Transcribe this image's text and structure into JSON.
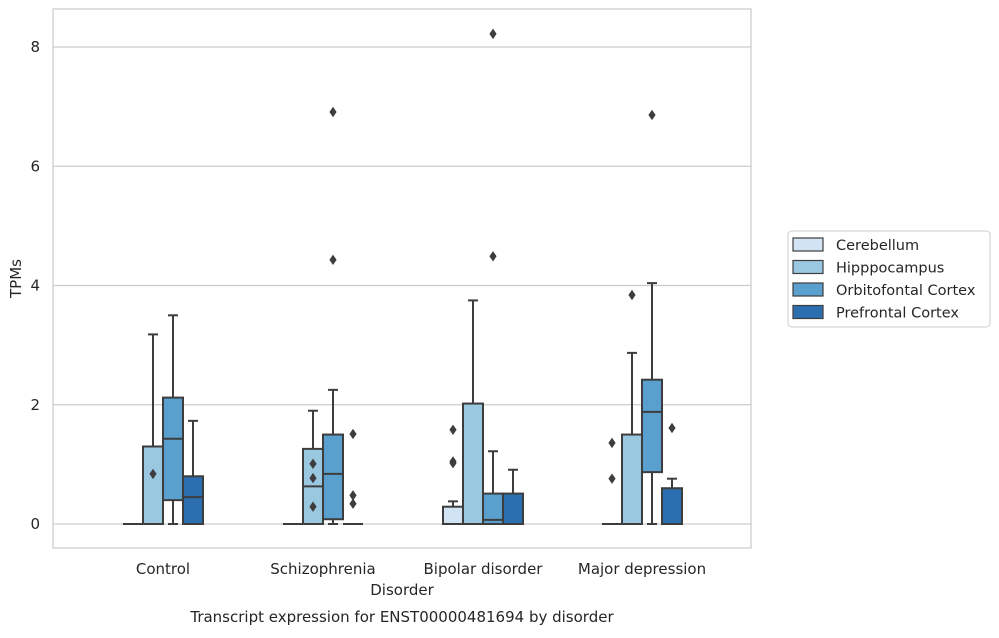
{
  "chart_data": {
    "type": "box",
    "caption": "Transcript expression for ENST00000481694 by disorder",
    "xlabel": "Disorder",
    "ylabel": "TPMs",
    "ylim": [
      -0.4,
      8.65
    ],
    "yticks": [
      0,
      2,
      4,
      6,
      8
    ],
    "categories": [
      "Control",
      "Schizophrenia",
      "Bipolar disorder",
      "Major depression"
    ],
    "grid": "horizontal",
    "legend_position": "right",
    "series": [
      {
        "name": "Cerebellum",
        "color": "#d2e3f3",
        "boxes": [
          {
            "q1": 0,
            "median": 0,
            "q3": 0,
            "whisker_low": 0,
            "whisker_high": 0,
            "outliers": []
          },
          {
            "q1": 0,
            "median": 0,
            "q3": 0,
            "whisker_low": 0,
            "whisker_high": 0,
            "outliers": []
          },
          {
            "q1": 0,
            "median": 0,
            "q3": 0.29,
            "whisker_low": 0,
            "whisker_high": 0.38,
            "outliers": [
              1.02,
              1.05,
              1.58
            ]
          },
          {
            "q1": 0,
            "median": 0,
            "q3": 0,
            "whisker_low": 0,
            "whisker_high": 0,
            "outliers": [
              0.76,
              1.36
            ]
          }
        ]
      },
      {
        "name": "Hipppocampus",
        "color": "#9ac8e0",
        "boxes": [
          {
            "q1": 0,
            "median": 0,
            "q3": 1.3,
            "whisker_low": 0,
            "whisker_high": 3.18,
            "outliers": [
              0.84
            ]
          },
          {
            "q1": 0,
            "median": 0.63,
            "q3": 1.26,
            "whisker_low": 0,
            "whisker_high": 1.9,
            "outliers": [
              0.29,
              0.77,
              1.01
            ]
          },
          {
            "q1": 0,
            "median": 0,
            "q3": 2.02,
            "whisker_low": 0,
            "whisker_high": 3.75,
            "outliers": []
          },
          {
            "q1": 0,
            "median": 0,
            "q3": 1.5,
            "whisker_low": 0,
            "whisker_high": 2.87,
            "outliers": [
              3.84
            ]
          }
        ]
      },
      {
        "name": "Orbitofontal Cortex",
        "color": "#5aa0ce",
        "boxes": [
          {
            "q1": 0.4,
            "median": 1.43,
            "q3": 2.12,
            "whisker_low": 0,
            "whisker_high": 3.5,
            "outliers": []
          },
          {
            "q1": 0.08,
            "median": 0.84,
            "q3": 1.5,
            "whisker_low": 0,
            "whisker_high": 2.25,
            "outliers": [
              4.43,
              6.91
            ]
          },
          {
            "q1": 0,
            "median": 0.07,
            "q3": 0.51,
            "whisker_low": 0,
            "whisker_high": 1.22,
            "outliers": [
              4.49,
              8.22
            ]
          },
          {
            "q1": 0.87,
            "median": 1.88,
            "q3": 2.42,
            "whisker_low": 0,
            "whisker_high": 4.04,
            "outliers": [
              6.86
            ]
          }
        ]
      },
      {
        "name": "Prefrontal Cortex",
        "color": "#2b6fb0",
        "boxes": [
          {
            "q1": 0,
            "median": 0.45,
            "q3": 0.8,
            "whisker_low": 0,
            "whisker_high": 1.73,
            "outliers": []
          },
          {
            "q1": 0,
            "median": 0,
            "q3": 0,
            "whisker_low": 0,
            "whisker_high": 0,
            "outliers": [
              0.34,
              0.48,
              1.51
            ]
          },
          {
            "q1": 0,
            "median": 0,
            "q3": 0.51,
            "whisker_low": 0,
            "whisker_high": 0.91,
            "outliers": []
          },
          {
            "q1": 0,
            "median": 0,
            "q3": 0.6,
            "whisker_low": 0,
            "whisker_high": 0.76,
            "outliers": [
              1.61
            ]
          }
        ]
      }
    ]
  }
}
